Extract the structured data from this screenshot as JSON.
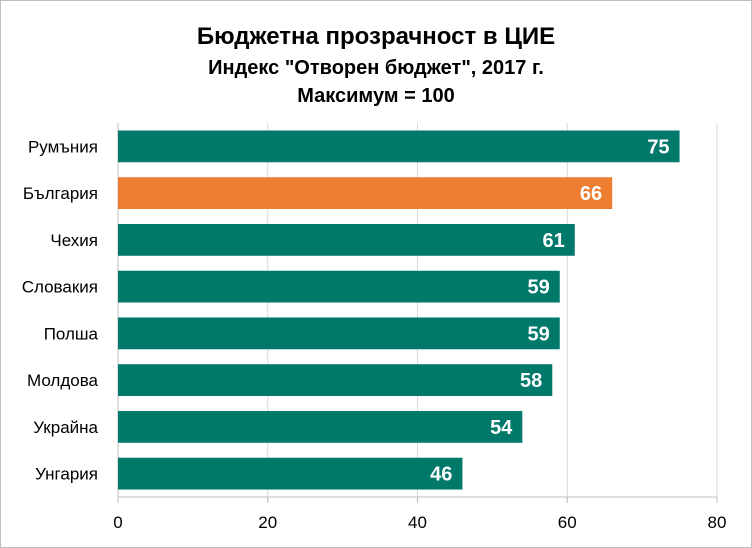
{
  "chart_data": {
    "type": "bar",
    "orientation": "horizontal",
    "title": "Бюджетна прозрачност в ЦИЕ",
    "subtitle": "Индекс \"Отворен бюджет\", 2017 г.",
    "subtitle2": "Максимум = 100",
    "categories": [
      "Румъния",
      "България",
      "Чехия",
      "Словакия",
      "Полша",
      "Молдова",
      "Украйна",
      "Унгария"
    ],
    "values": [
      75,
      66,
      61,
      59,
      59,
      58,
      54,
      46
    ],
    "value_labels": [
      "75",
      "66",
      "61",
      "59",
      "59",
      "58",
      "54",
      "46"
    ],
    "xlim": [
      0,
      80
    ],
    "xticks": [
      0,
      20,
      40,
      60,
      80
    ],
    "xtick_labels": [
      "0",
      "20",
      "40",
      "60",
      "80"
    ],
    "grid": true,
    "legend": "none",
    "colors": {
      "default": "#00796b",
      "highlight": "#ed7d31",
      "highlight_category": "България",
      "grid": "#d9d9d9",
      "axis": "#bfbfbf"
    }
  }
}
